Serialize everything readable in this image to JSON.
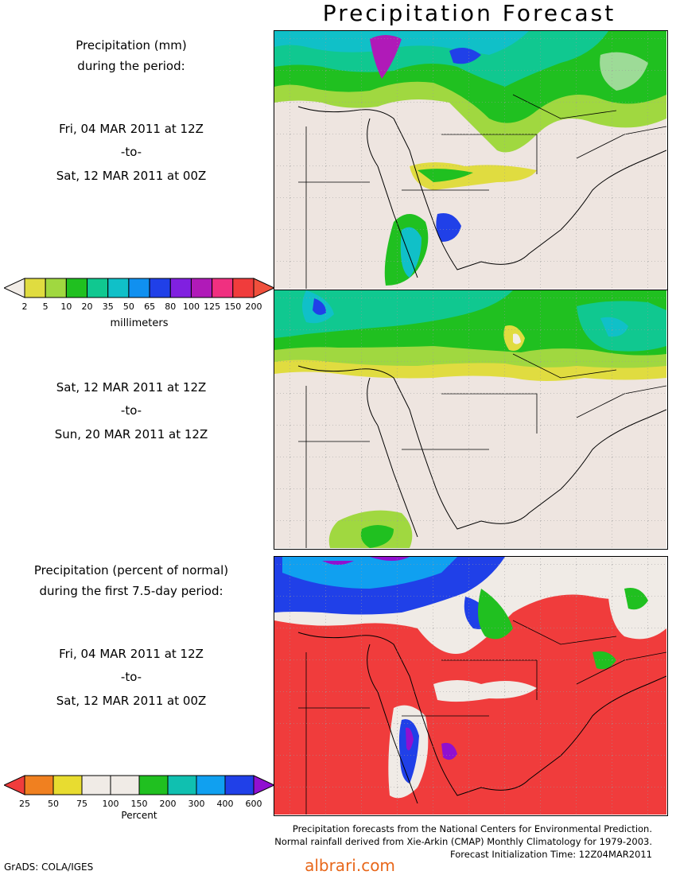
{
  "title": "Precipitation Forecast",
  "panel1": {
    "header_line1": "Precipitation (mm)",
    "header_line2": "during the period:",
    "start": "Fri, 04 MAR 2011 at 12Z",
    "to": "-to-",
    "end": "Sat, 12 MAR 2011 at 00Z"
  },
  "panel2": {
    "start": "Sat, 12 MAR 2011 at 12Z",
    "to": "-to-",
    "end": "Sun, 20 MAR 2011 at 12Z"
  },
  "panel3": {
    "header_line1": "Precipitation (percent of normal)",
    "header_line2": "during the first 7.5-day period:",
    "start": "Fri, 04 MAR 2011 at 12Z",
    "to": "-to-",
    "end": "Sat, 12 MAR 2011 at 00Z"
  },
  "legend_mm": {
    "unit": "millimeters",
    "ticks": [
      "2",
      "5",
      "10",
      "20",
      "35",
      "50",
      "65",
      "80",
      "100",
      "125",
      "150",
      "200"
    ],
    "colors": [
      "#f2ede8",
      "#e0dc40",
      "#a0d840",
      "#20c020",
      "#10c890",
      "#10c0c8",
      "#1090f0",
      "#2040e8",
      "#8020e0",
      "#b01ab8",
      "#f03080",
      "#f03c3c",
      "#f0503c"
    ]
  },
  "legend_pct": {
    "unit": "Percent",
    "ticks": [
      "25",
      "50",
      "75",
      "100",
      "150",
      "200",
      "300",
      "400",
      "600"
    ],
    "colors": [
      "#f03c3c",
      "#f08020",
      "#e8dc30",
      "#f0ebe6",
      "#f0ebe6",
      "#20c020",
      "#10c0b0",
      "#10a0f0",
      "#2040e8",
      "#9010d0"
    ]
  },
  "credits": {
    "line1": "Precipitation forecasts from the National Centers for Environmental Prediction.",
    "line2": "Normal rainfall derived from Xie-Arkin (CMAP) Monthly Climatology for 1979-2003.",
    "line3": "Forecast Initialization Time: 12Z04MAR2011"
  },
  "grads": "GrADS: COLA/IGES",
  "site": "albrari.com"
}
